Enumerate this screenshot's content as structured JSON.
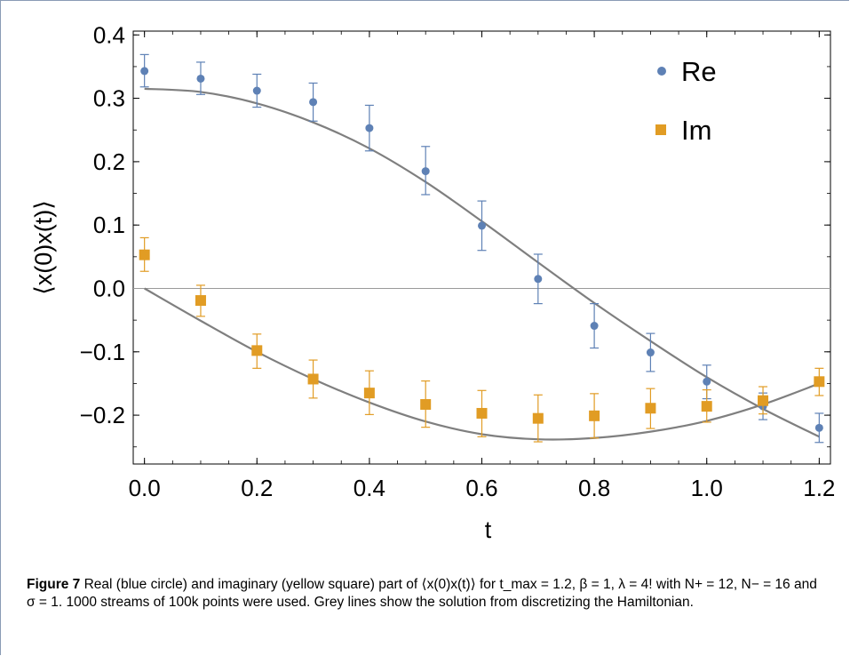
{
  "chart_data": {
    "type": "scatter",
    "xlabel": "t",
    "ylabel": "⟨x(0)x(t)⟩",
    "xlim": [
      -0.02,
      1.22
    ],
    "ylim": [
      -0.277,
      0.406
    ],
    "xticks": [
      0.0,
      0.2,
      0.4,
      0.6,
      0.8,
      1.0,
      1.2
    ],
    "xtick_labels": [
      "0.0",
      "0.2",
      "0.4",
      "0.6",
      "0.8",
      "1.0",
      "1.2"
    ],
    "yticks": [
      -0.2,
      -0.1,
      0.0,
      0.1,
      0.2,
      0.3,
      0.4
    ],
    "ytick_labels": [
      "−0.2",
      "−0.1",
      "0.0",
      "0.1",
      "0.2",
      "0.3",
      "0.4"
    ],
    "legend_position": "top-right",
    "series": [
      {
        "name": "Re",
        "marker": "circle",
        "color": "#5e81b5",
        "x": [
          0.0,
          0.1,
          0.2,
          0.3,
          0.4,
          0.5,
          0.6,
          0.7,
          0.8,
          0.9,
          1.0,
          1.1,
          1.2
        ],
        "y": [
          0.343,
          0.331,
          0.312,
          0.294,
          0.253,
          0.185,
          0.099,
          0.015,
          -0.059,
          -0.101,
          -0.147,
          -0.186,
          -0.22
        ],
        "err_low": [
          0.318,
          0.306,
          0.286,
          0.264,
          0.217,
          0.148,
          0.06,
          -0.024,
          -0.094,
          -0.131,
          -0.174,
          -0.207,
          -0.243
        ],
        "err_high": [
          0.369,
          0.357,
          0.338,
          0.324,
          0.289,
          0.224,
          0.138,
          0.054,
          -0.024,
          -0.071,
          -0.121,
          -0.165,
          -0.197
        ]
      },
      {
        "name": "Im",
        "marker": "square",
        "color": "#e19c24",
        "x": [
          0.0,
          0.1,
          0.2,
          0.3,
          0.4,
          0.5,
          0.6,
          0.7,
          0.8,
          0.9,
          1.0,
          1.1,
          1.2
        ],
        "y": [
          0.053,
          -0.019,
          -0.098,
          -0.143,
          -0.165,
          -0.183,
          -0.197,
          -0.205,
          -0.201,
          -0.189,
          -0.186,
          -0.177,
          -0.147
        ],
        "err_low": [
          0.027,
          -0.044,
          -0.126,
          -0.173,
          -0.199,
          -0.219,
          -0.234,
          -0.242,
          -0.236,
          -0.221,
          -0.211,
          -0.198,
          -0.169
        ],
        "err_high": [
          0.08,
          0.005,
          -0.072,
          -0.113,
          -0.13,
          -0.146,
          -0.161,
          -0.168,
          -0.166,
          -0.158,
          -0.16,
          -0.155,
          -0.126
        ]
      }
    ],
    "reference_curves": [
      {
        "color": "#7f7f7f",
        "x": [
          0.0,
          0.1,
          0.2,
          0.3,
          0.4,
          0.5,
          0.6,
          0.7,
          0.8,
          0.9,
          1.0,
          1.1,
          1.2
        ],
        "y": [
          0.315,
          0.31,
          0.292,
          0.262,
          0.221,
          0.168,
          0.106,
          0.041,
          -0.023,
          -0.083,
          -0.14,
          -0.19,
          -0.234
        ]
      },
      {
        "color": "#7f7f7f",
        "x": [
          0.0,
          0.1,
          0.2,
          0.3,
          0.4,
          0.5,
          0.6,
          0.7,
          0.8,
          0.9,
          1.0,
          1.1,
          1.2
        ],
        "y": [
          0.0,
          -0.051,
          -0.1,
          -0.143,
          -0.18,
          -0.21,
          -0.23,
          -0.238,
          -0.236,
          -0.226,
          -0.209,
          -0.183,
          -0.15
        ]
      }
    ],
    "zero_line": {
      "y": 0.0,
      "color": "#999999"
    }
  },
  "caption": {
    "label": "Figure 7",
    "text": "Real (blue circle) and imaginary (yellow square) part of ⟨x(0)x(t)⟩ for t_max = 1.2, β = 1, λ = 4! with N+ = 12, N− = 16 and σ = 1. 1000 streams of 100k points were used. Grey lines show the solution from discretizing the Hamiltonian."
  }
}
